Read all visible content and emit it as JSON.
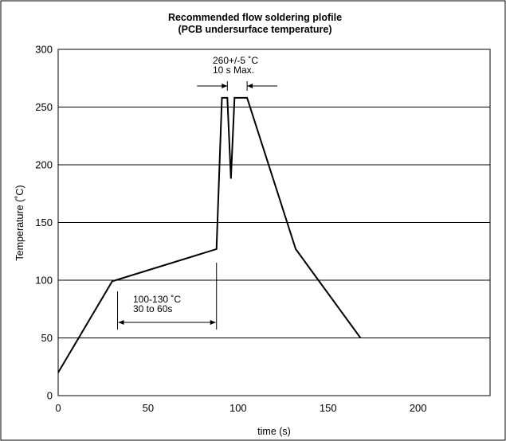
{
  "chart_data": {
    "type": "line",
    "title": "Recommended flow soldering plofile",
    "subtitle": "(PCB undersurface temperature)",
    "xlabel": "time (s)",
    "ylabel": "Temperature (˚C)",
    "xlim": [
      0,
      240
    ],
    "ylim": [
      0,
      300
    ],
    "x_ticks": [
      0,
      50,
      100,
      150,
      200
    ],
    "y_ticks": [
      0,
      50,
      100,
      150,
      200,
      250,
      300
    ],
    "grid": "horizontal",
    "series": [
      {
        "x": [
          0,
          30,
          88,
          91,
          94,
          96,
          98,
          105,
          132,
          168
        ],
        "y": [
          20,
          99,
          127,
          258,
          258,
          188,
          258,
          258,
          127,
          50
        ]
      }
    ],
    "annotations": [
      {
        "lines": [
          "260+/-5 ˚C",
          "10 s Max."
        ],
        "range_x": [
          94,
          105
        ],
        "y": 258
      },
      {
        "lines": [
          "100-130 ˚C",
          "30 to 60s"
        ],
        "range_x": [
          33,
          88
        ],
        "y": 99
      }
    ]
  }
}
